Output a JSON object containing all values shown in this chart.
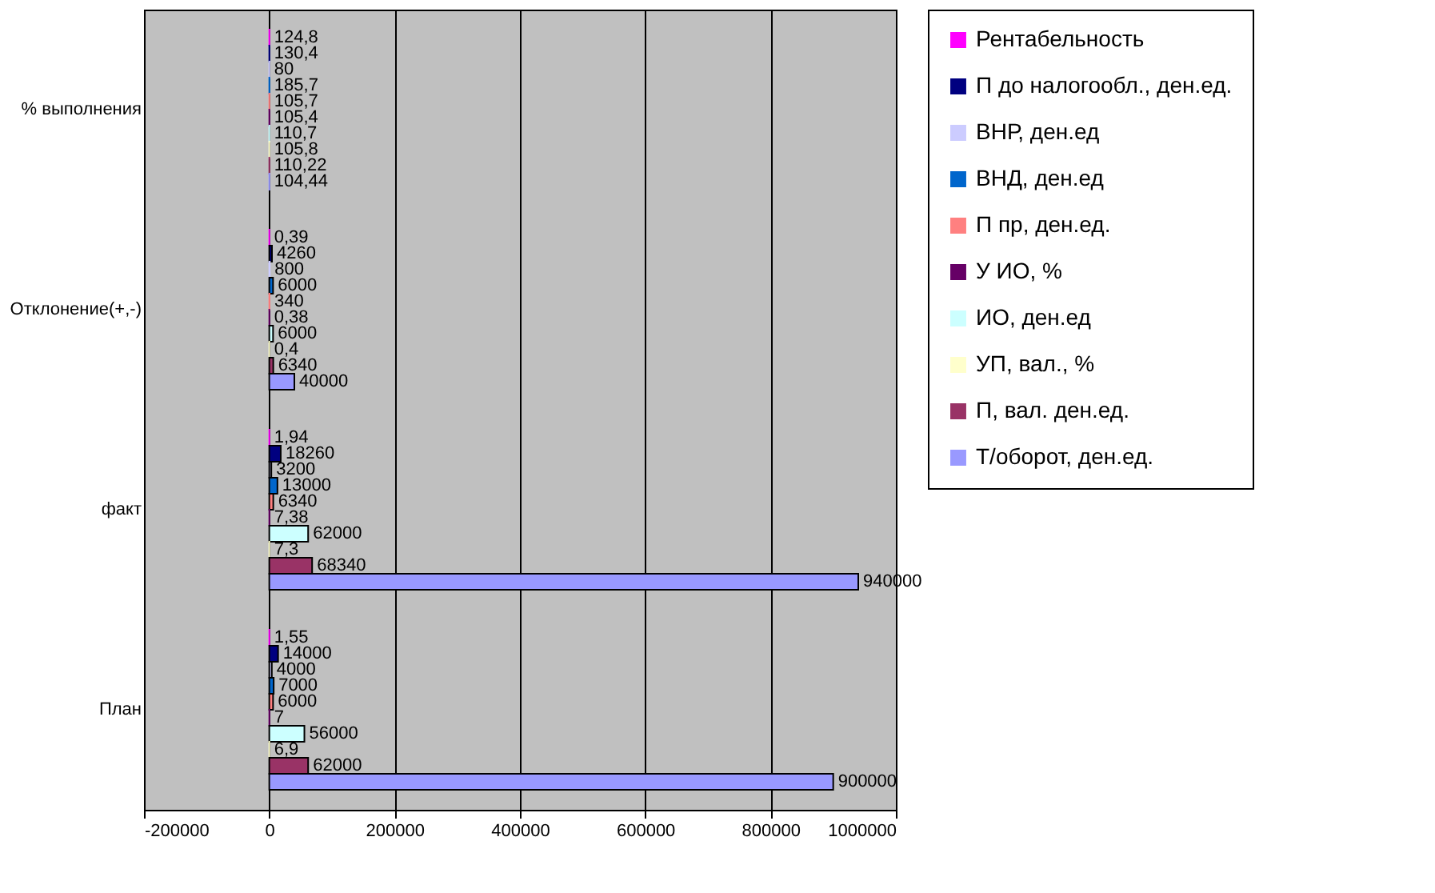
{
  "chart_data": {
    "type": "bar",
    "orientation": "horizontal",
    "categories": [
      "% выполнения",
      "Отклонение(+,-)",
      "факт",
      "План"
    ],
    "xlim": [
      -200000,
      1000000
    ],
    "xticks": [
      -200000,
      0,
      200000,
      400000,
      600000,
      800000,
      1000000
    ],
    "grid": "x",
    "legend": "right",
    "series": [
      {
        "name": "Рентабельность",
        "color": "#ff00ff",
        "values": [
          124.8,
          0.39,
          1.94,
          1.55
        ],
        "value_labels": [
          "124,8",
          "0,39",
          "1,94",
          "1,55"
        ]
      },
      {
        "name": "П до налогообл., ден.ед.",
        "color": "#000080",
        "values": [
          130.4,
          4260,
          18260,
          14000
        ],
        "value_labels": [
          "130,4",
          "4260",
          "18260",
          "14000"
        ]
      },
      {
        "name": "ВНР, ден.ед",
        "color": "#ccccff",
        "values": [
          80,
          800,
          3200,
          4000
        ],
        "value_labels": [
          "80",
          "800",
          "3200",
          "4000"
        ]
      },
      {
        "name": "ВНД, ден.ед",
        "color": "#0066cc",
        "values": [
          185.7,
          6000,
          13000,
          7000
        ],
        "value_labels": [
          "185,7",
          "6000",
          "13000",
          "7000"
        ]
      },
      {
        "name": "П пр, ден.ед.",
        "color": "#ff8080",
        "values": [
          105.7,
          340,
          6340,
          6000
        ],
        "value_labels": [
          "105,7",
          "340",
          "6340",
          "6000"
        ]
      },
      {
        "name": "У ИО, %",
        "color": "#660066",
        "values": [
          105.4,
          0.38,
          7.38,
          7
        ],
        "value_labels": [
          "105,4",
          "0,38",
          "7,38",
          "7"
        ]
      },
      {
        "name": "ИО, ден.ед",
        "color": "#ccffff",
        "values": [
          110.7,
          6000,
          62000,
          56000
        ],
        "value_labels": [
          "110,7",
          "6000",
          "62000",
          "56000"
        ]
      },
      {
        "name": "УП, вал., %",
        "color": "#ffffcc",
        "values": [
          105.8,
          0.4,
          7.3,
          6.9
        ],
        "value_labels": [
          "105,8",
          "0,4",
          "7,3",
          "6,9"
        ]
      },
      {
        "name": "П, вал. ден.ед.",
        "color": "#993366",
        "values": [
          110.22,
          6340,
          68340,
          62000
        ],
        "value_labels": [
          "110,22",
          "6340",
          "68340",
          "62000"
        ]
      },
      {
        "name": "Т/оборот, ден.ед.",
        "color": "#9999ff",
        "values": [
          104.44,
          40000,
          940000,
          900000
        ],
        "value_labels": [
          "104,44",
          "40000",
          "940000",
          "900000"
        ]
      }
    ]
  }
}
